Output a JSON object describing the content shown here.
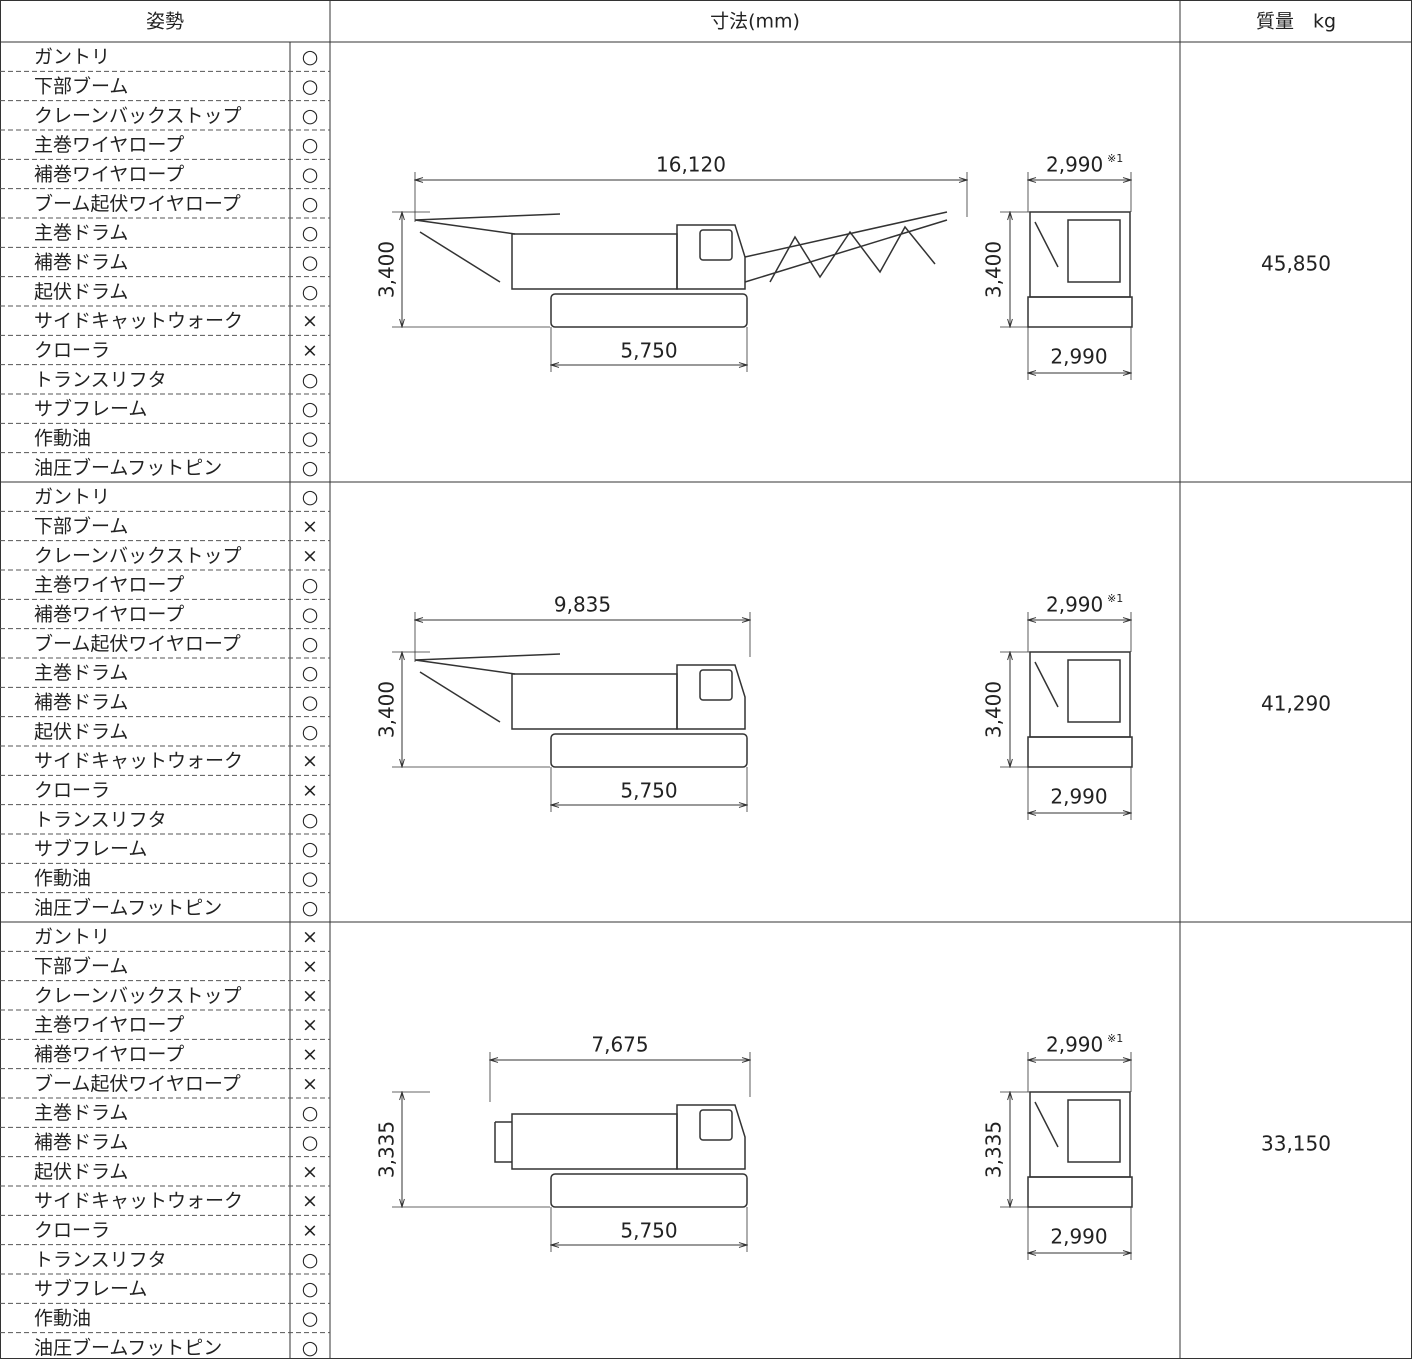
{
  "header": {
    "posture": "姿勢",
    "dimensions": "寸法(mm)",
    "mass": "質量　kg"
  },
  "sections": [
    {
      "items": [
        {
          "label": "ガントリ",
          "mark": "○"
        },
        {
          "label": "下部ブーム",
          "mark": "○"
        },
        {
          "label": "クレーンバックストップ",
          "mark": "○"
        },
        {
          "label": "主巻ワイヤロープ",
          "mark": "○"
        },
        {
          "label": "補巻ワイヤロープ",
          "mark": "○"
        },
        {
          "label": "ブーム起伏ワイヤロープ",
          "mark": "○"
        },
        {
          "label": "主巻ドラム",
          "mark": "○"
        },
        {
          "label": "補巻ドラム",
          "mark": "○"
        },
        {
          "label": "起伏ドラム",
          "mark": "○"
        },
        {
          "label": "サイドキャットウォーク",
          "mark": "×"
        },
        {
          "label": "クローラ",
          "mark": "×"
        },
        {
          "label": "トランスリフタ",
          "mark": "○"
        },
        {
          "label": "サブフレーム",
          "mark": "○"
        },
        {
          "label": "作動油",
          "mark": "○"
        },
        {
          "label": "油圧ブームフットピン",
          "mark": "○"
        }
      ],
      "length": "16,120",
      "height": "3,400",
      "base_width": "5,750",
      "rear_width": "2,990",
      "rear_width_note": "※1",
      "rear_height": "3,400",
      "rear_base_width": "2,990",
      "mass": "45,850"
    },
    {
      "items": [
        {
          "label": "ガントリ",
          "mark": "○"
        },
        {
          "label": "下部ブーム",
          "mark": "×"
        },
        {
          "label": "クレーンバックストップ",
          "mark": "×"
        },
        {
          "label": "主巻ワイヤロープ",
          "mark": "○"
        },
        {
          "label": "補巻ワイヤロープ",
          "mark": "○"
        },
        {
          "label": "ブーム起伏ワイヤロープ",
          "mark": "○"
        },
        {
          "label": "主巻ドラム",
          "mark": "○"
        },
        {
          "label": "補巻ドラム",
          "mark": "○"
        },
        {
          "label": "起伏ドラム",
          "mark": "○"
        },
        {
          "label": "サイドキャットウォーク",
          "mark": "×"
        },
        {
          "label": "クローラ",
          "mark": "×"
        },
        {
          "label": "トランスリフタ",
          "mark": "○"
        },
        {
          "label": "サブフレーム",
          "mark": "○"
        },
        {
          "label": "作動油",
          "mark": "○"
        },
        {
          "label": "油圧ブームフットピン",
          "mark": "○"
        }
      ],
      "length": "9,835",
      "height": "3,400",
      "base_width": "5,750",
      "rear_width": "2,990",
      "rear_width_note": "※1",
      "rear_height": "3,400",
      "rear_base_width": "2,990",
      "mass": "41,290"
    },
    {
      "items": [
        {
          "label": "ガントリ",
          "mark": "×"
        },
        {
          "label": "下部ブーム",
          "mark": "×"
        },
        {
          "label": "クレーンバックストップ",
          "mark": "×"
        },
        {
          "label": "主巻ワイヤロープ",
          "mark": "×"
        },
        {
          "label": "補巻ワイヤロープ",
          "mark": "×"
        },
        {
          "label": "ブーム起伏ワイヤロープ",
          "mark": "×"
        },
        {
          "label": "主巻ドラム",
          "mark": "○"
        },
        {
          "label": "補巻ドラム",
          "mark": "○"
        },
        {
          "label": "起伏ドラム",
          "mark": "×"
        },
        {
          "label": "サイドキャットウォーク",
          "mark": "×"
        },
        {
          "label": "クローラ",
          "mark": "×"
        },
        {
          "label": "トランスリフタ",
          "mark": "○"
        },
        {
          "label": "サブフレーム",
          "mark": "○"
        },
        {
          "label": "作動油",
          "mark": "○"
        },
        {
          "label": "油圧ブームフットピン",
          "mark": "○"
        }
      ],
      "length": "7,675",
      "height": "3,335",
      "base_width": "5,750",
      "rear_width": "2,990",
      "rear_width_note": "※1",
      "rear_height": "3,335",
      "rear_base_width": "2,990",
      "mass": "33,150"
    }
  ]
}
